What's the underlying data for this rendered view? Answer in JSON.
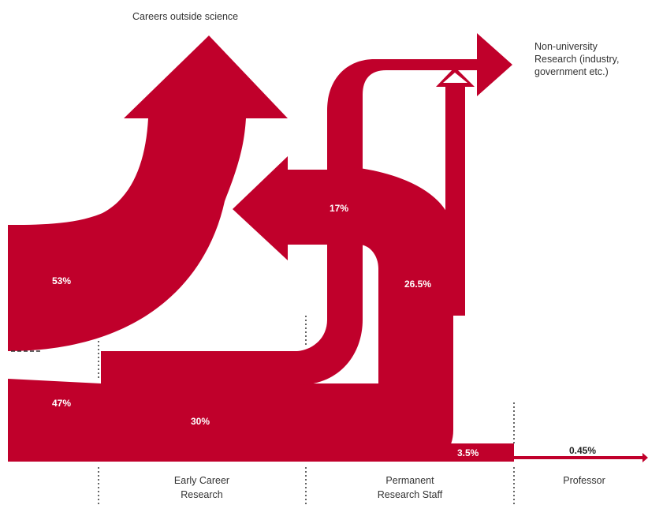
{
  "colors": {
    "flow": "#c0002b",
    "text": "#333333"
  },
  "destinations": {
    "careers_outside_science": "Careers outside science",
    "non_university_research": [
      "Non-university",
      "Research (industry,",
      "government etc.)"
    ]
  },
  "stages": {
    "early_career": [
      "Early Career",
      "Research"
    ],
    "permanent_staff": [
      "Permanent",
      "Research Staff"
    ],
    "professor": "Professor"
  },
  "percentages": {
    "leave_science_early": "53%",
    "stay_early": "47%",
    "to_non_university_early": "17%",
    "stay_to_permanent": "30%",
    "permanent_leave": "26.5%",
    "permanent_to_professor_bar": "3.5%",
    "professor": "0.45%"
  }
}
